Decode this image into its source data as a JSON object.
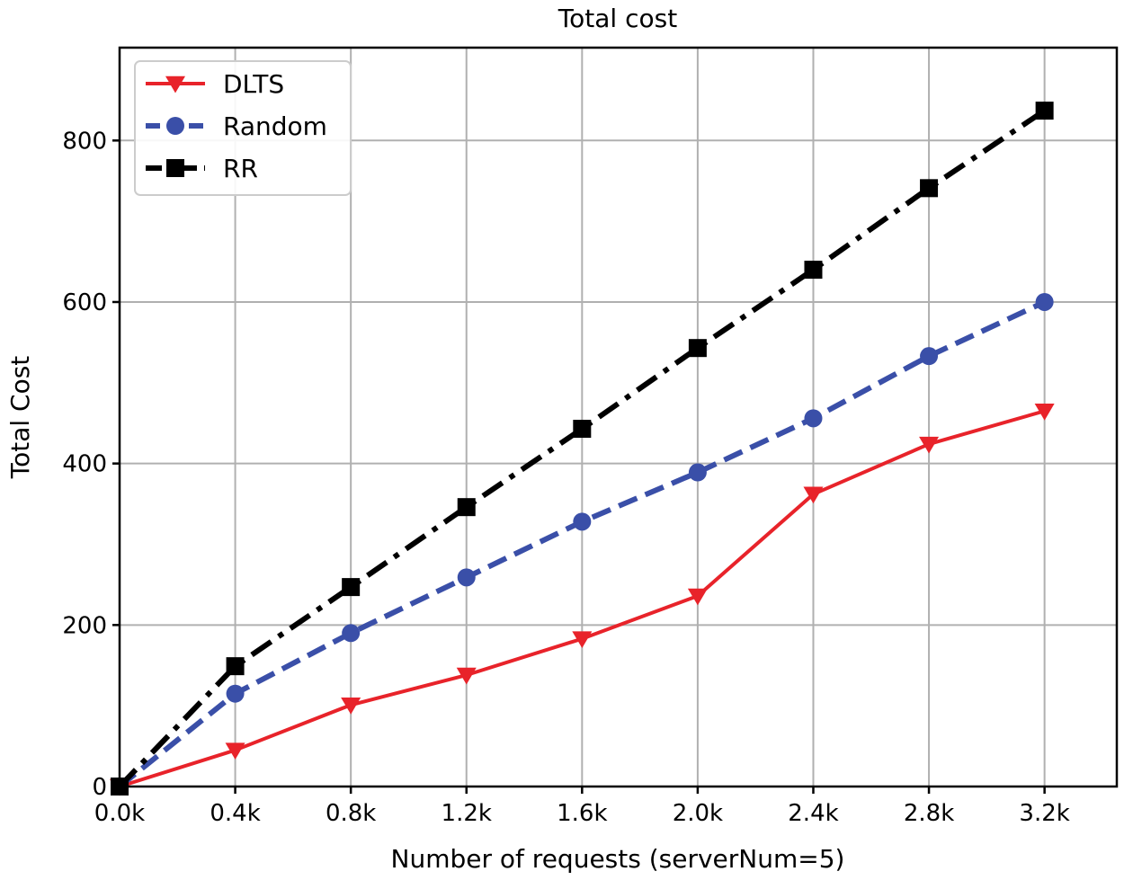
{
  "chart_data": {
    "type": "line",
    "title": "Total cost",
    "xlabel": "Number of requests (serverNum=5)",
    "ylabel": "Total Cost",
    "x": [
      0,
      0.4,
      0.8,
      1.2,
      1.6,
      2.0,
      2.4,
      2.8,
      3.2
    ],
    "x_tick_labels": [
      "0.0k",
      "0.4k",
      "0.8k",
      "1.2k",
      "1.6k",
      "2.0k",
      "2.4k",
      "2.8k",
      "3.2k"
    ],
    "y_ticks": [
      0,
      200,
      400,
      600,
      800
    ],
    "xlim": [
      0,
      3.45
    ],
    "ylim": [
      0,
      915
    ],
    "grid": true,
    "legend_position": "top-left",
    "series": [
      {
        "name": "DLTS",
        "color": "#e8232a",
        "marker": "triangle-down",
        "line_style": "solid",
        "values": [
          0,
          45,
          101,
          138,
          183,
          236,
          362,
          424,
          465
        ]
      },
      {
        "name": "Random",
        "color": "#3a4fa8",
        "marker": "circle",
        "line_style": "dashed",
        "values": [
          0,
          115,
          190,
          259,
          328,
          389,
          456,
          533,
          600
        ]
      },
      {
        "name": "RR",
        "color": "#000000",
        "marker": "square",
        "line_style": "dash-dot",
        "values": [
          0,
          149,
          247,
          346,
          443,
          543,
          640,
          741,
          837
        ]
      }
    ]
  }
}
